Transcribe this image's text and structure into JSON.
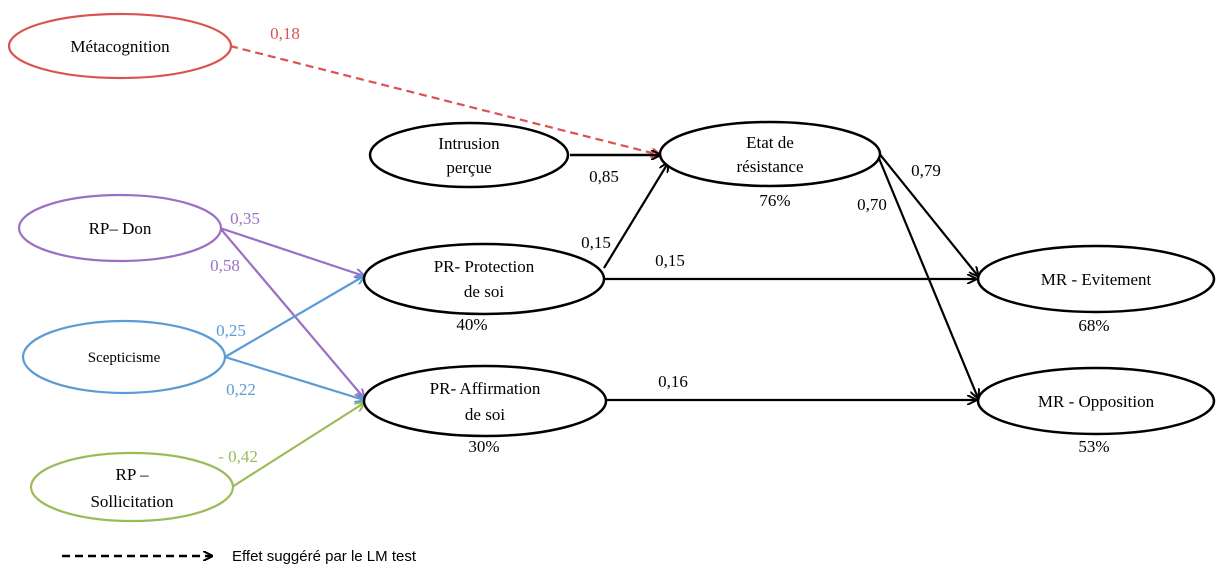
{
  "colors": {
    "black": "#000000",
    "red": "#d9534f",
    "purple": "#9b6fc4",
    "blue": "#5b9bd5",
    "green": "#9bbb59"
  },
  "nodes": {
    "metacognition": {
      "lines": [
        "Métacognition"
      ],
      "color": "#d9534f"
    },
    "rp_don": {
      "lines": [
        "RP– Don"
      ],
      "color": "#9b6fc4"
    },
    "scepticisme": {
      "lines": [
        "Scepticisme"
      ],
      "color": "#5b9bd5"
    },
    "rp_sollicitation": {
      "lines": [
        "RP –",
        "Sollicitation"
      ],
      "color": "#9bbb59"
    },
    "intrusion": {
      "lines": [
        "Intrusion",
        "perçue"
      ],
      "color": "#000000"
    },
    "pr_protection": {
      "lines": [
        "PR- Protection",
        "de soi"
      ],
      "color": "#000000"
    },
    "pr_affirmation": {
      "lines": [
        "PR- Affirmation",
        "de soi"
      ],
      "color": "#000000"
    },
    "etat_resistance": {
      "lines": [
        "Etat de",
        "résistance"
      ],
      "color": "#000000"
    },
    "mr_evitement": {
      "lines": [
        "MR - Evitement"
      ],
      "color": "#000000"
    },
    "mr_opposition": {
      "lines": [
        "MR - Opposition"
      ],
      "color": "#000000"
    }
  },
  "variance": {
    "etat_resistance": "76%",
    "pr_protection": "40%",
    "pr_affirmation": "30%",
    "mr_evitement": "68%",
    "mr_opposition": "53%"
  },
  "coefficients": {
    "meta_etat": "0,18",
    "intrusion_etat": "0,85",
    "don_protection": "0,35",
    "don_affirmation": "0,58",
    "scept_protection": "0,25",
    "scept_affirmation": "0,22",
    "sollicit_affirmation": "- 0,42",
    "protection_etat": "0,15",
    "protection_evitement": "0,15",
    "affirmation_opposition": "0,16",
    "etat_evitement": "0,79",
    "etat_opposition": "0,70"
  },
  "legend": {
    "text": "Effet suggéré par le LM test",
    "line_style": "dashed"
  }
}
